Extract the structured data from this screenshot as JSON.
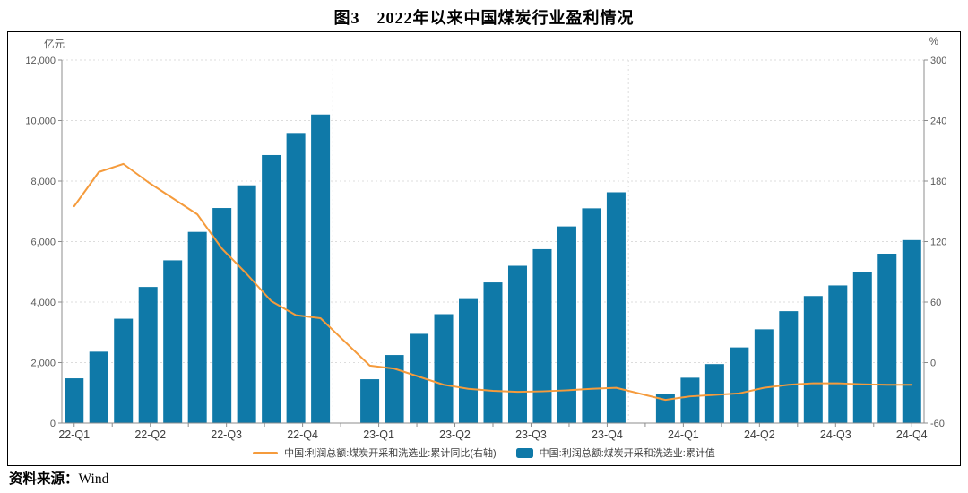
{
  "title": "图3　2022年以来中国煤炭行业盈利情况",
  "footer": {
    "label": "资料来源：",
    "source": "Wind"
  },
  "chart_data": {
    "type": "bar+line combo",
    "title": "图3　2022年以来中国煤炭行业盈利情况",
    "left_axis": {
      "unit": "亿元",
      "min": 0,
      "max": 12000,
      "step": 2000,
      "ticks": [
        0,
        2000,
        4000,
        6000,
        8000,
        10000,
        12000
      ]
    },
    "right_axis": {
      "unit": "%",
      "min": -60,
      "max": 300,
      "step": 60,
      "ticks": [
        -60,
        0,
        60,
        120,
        180,
        240,
        300
      ]
    },
    "x_tick_labels": [
      "22-Q1",
      "22-Q2",
      "22-Q3",
      "22-Q4",
      "23-Q1",
      "23-Q2",
      "23-Q3",
      "23-Q4",
      "24-Q1",
      "24-Q2",
      "24-Q3",
      "24-Q4"
    ],
    "layout": {
      "slots": 35,
      "year_offsets": [
        0,
        12,
        24
      ],
      "year_gap_slots": [
        11,
        23
      ],
      "grid": "dashed-horizontal",
      "legend_position": "bottom-center"
    },
    "series": [
      {
        "name": "中国:利润总额:煤炭开采和洗选业:累计同比(右轴)",
        "type": "line",
        "axis": "right",
        "color": "#F59B3C",
        "years": [
          {
            "year": "2022",
            "values": [
              155,
              189,
              197,
              179,
              163,
              147,
              113,
              88,
              61,
              47,
              44
            ]
          },
          {
            "year": "2023",
            "values": [
              -3,
              -6,
              -14,
              -22,
              -26,
              -28,
              -29,
              -28.5,
              -27.5,
              -26,
              -25
            ]
          },
          {
            "year": "2024",
            "values": [
              -37,
              -33.5,
              -32,
              -30.5,
              -25,
              -22,
              -20.5,
              -20.5,
              -21.5,
              -22,
              -22
            ]
          }
        ]
      },
      {
        "name": "中国:利润总额:煤炭开采和洗选业:累计值",
        "type": "bar",
        "axis": "left",
        "color": "#0F79A8",
        "years": [
          {
            "year": "2022",
            "values": [
              1480,
              2360,
              3450,
              4500,
              5380,
              6320,
              7110,
              7860,
              8860,
              9590,
              10200
            ]
          },
          {
            "year": "2023",
            "values": [
              1450,
              2250,
              2950,
              3600,
              4100,
              4650,
              5200,
              5750,
              6500,
              7100,
              7630
            ]
          },
          {
            "year": "2024",
            "values": [
              950,
              1500,
              1950,
              2500,
              3100,
              3700,
              4200,
              4550,
              5000,
              5600,
              6050
            ]
          }
        ]
      }
    ],
    "colors": {
      "bar": "#0F79A8",
      "line": "#F59B3C",
      "grid": "#DCDCDC",
      "axis": "#8C8C8C",
      "tick_text": "#595959",
      "x_label_text": "#404040"
    }
  }
}
